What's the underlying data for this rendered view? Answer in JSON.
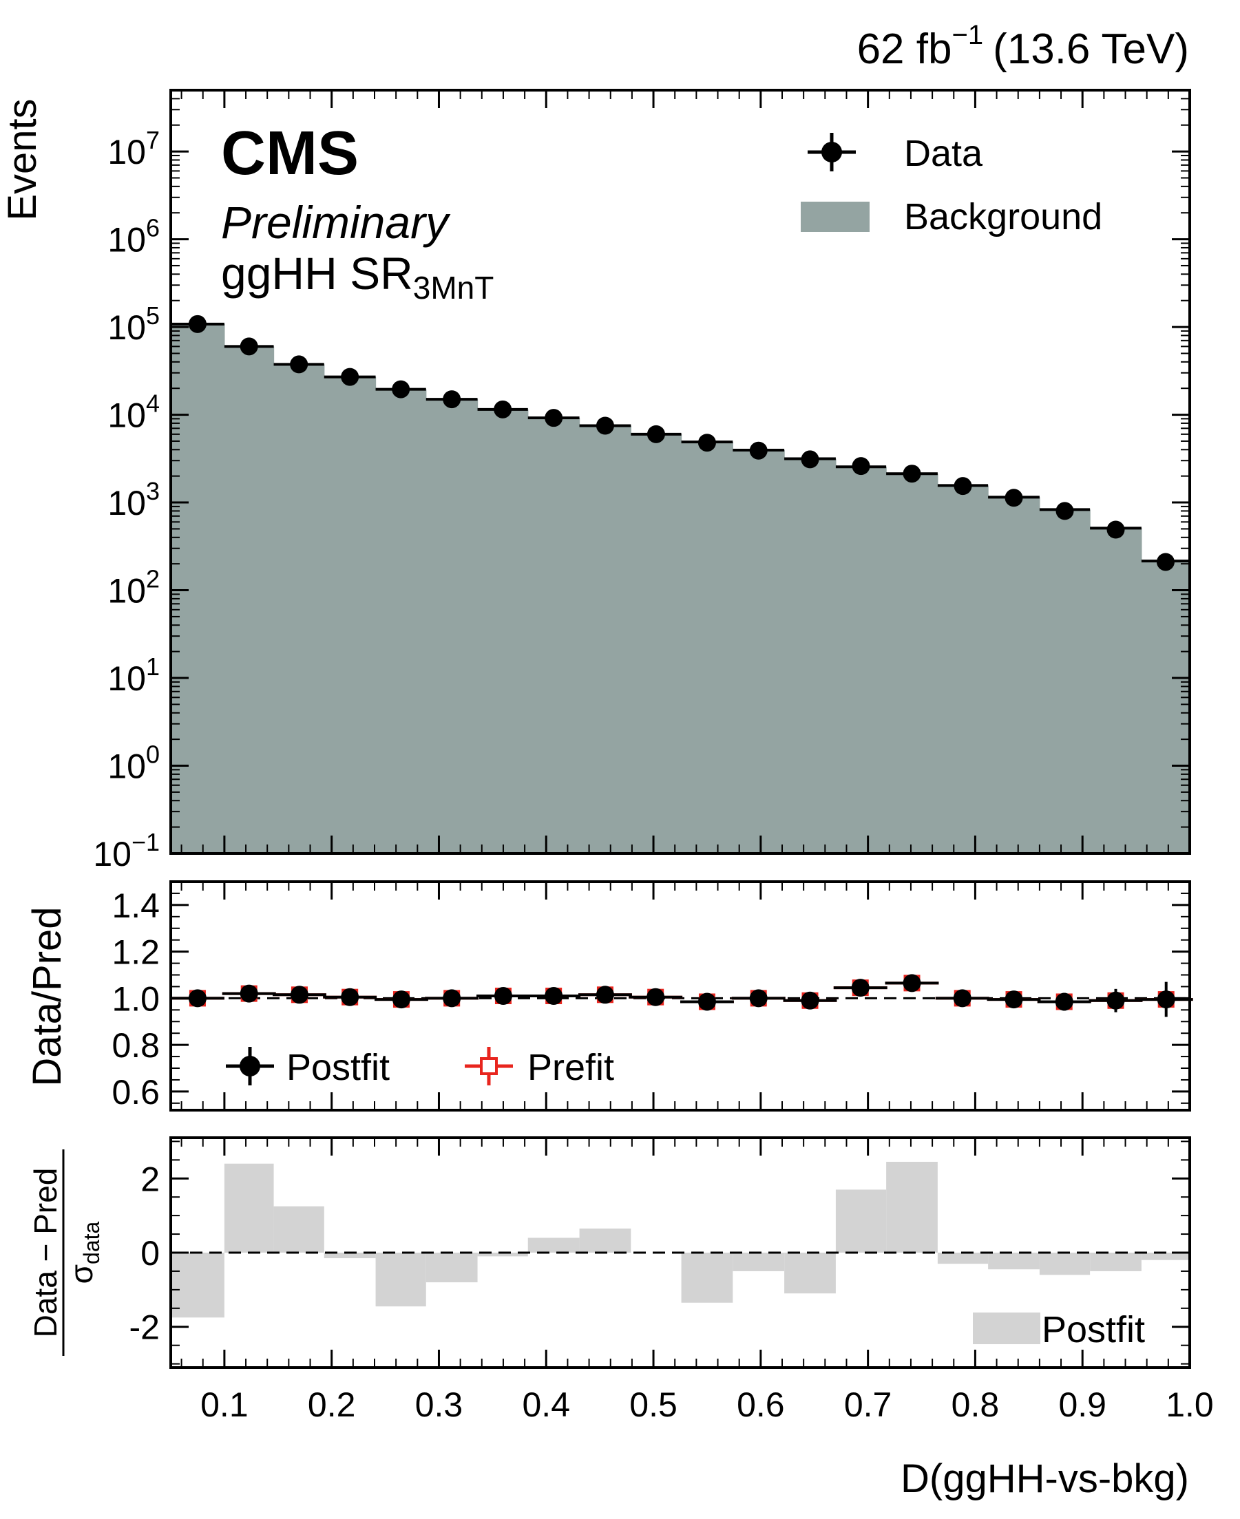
{
  "header": {
    "lumi_prefix": "62 fb",
    "lumi_exp": "−1",
    "energy": "(13.6 TeV)"
  },
  "labels": {
    "cms": "CMS",
    "preliminary": "Preliminary",
    "region_main": "ggHH SR",
    "region_sub": "3MnT"
  },
  "chart_data": [
    {
      "type": "bar",
      "panel": "main",
      "yscale": "log",
      "ylabel": "Events",
      "xlabel": "D(ggHH-vs-bkg)",
      "xlim": [
        0.05,
        1.0
      ],
      "ylim": [
        0.1,
        50000000
      ],
      "y_ticks": [
        {
          "value": 0.1,
          "base": "10",
          "exp": "−1"
        },
        {
          "value": 1,
          "base": "10",
          "exp": "0"
        },
        {
          "value": 10,
          "base": "10",
          "exp": "1"
        },
        {
          "value": 100,
          "base": "10",
          "exp": "2"
        },
        {
          "value": 1000,
          "base": "10",
          "exp": "3"
        },
        {
          "value": 10000,
          "base": "10",
          "exp": "4"
        },
        {
          "value": 100000,
          "base": "10",
          "exp": "5"
        },
        {
          "value": 1000000,
          "base": "10",
          "exp": "6"
        },
        {
          "value": 10000000,
          "base": "10",
          "exp": "7"
        }
      ],
      "bin_edges": [
        0.05,
        0.1,
        0.146,
        0.193,
        0.241,
        0.288,
        0.336,
        0.383,
        0.431,
        0.479,
        0.526,
        0.574,
        0.622,
        0.67,
        0.717,
        0.765,
        0.812,
        0.86,
        0.907,
        0.955,
        1.0
      ],
      "series": [
        {
          "name": "Background",
          "kind": "stacked-histogram",
          "color": "#94a4a2",
          "values": [
            108000,
            60000,
            37500,
            27000,
            19500,
            15000,
            11500,
            9200,
            7500,
            6000,
            4900,
            3950,
            3150,
            2550,
            2130,
            1560,
            1150,
            830,
            510,
            215
          ]
        },
        {
          "name": "Data",
          "kind": "points-with-errors",
          "color": "#000000",
          "values": [
            108000,
            60000,
            37500,
            27000,
            19500,
            15000,
            11500,
            9200,
            7500,
            6000,
            4800,
            3900,
            3100,
            2600,
            2130,
            1540,
            1130,
            800,
            490,
            210
          ]
        }
      ],
      "legend": {
        "placement": "top-right",
        "entries": [
          "Data",
          "Background"
        ]
      }
    },
    {
      "type": "scatter",
      "panel": "ratio",
      "ylabel": "Data/Pred",
      "ylim": [
        0.52,
        1.5
      ],
      "y_ticks": [
        "0.6",
        "0.8",
        "1.0",
        "1.2",
        "1.4"
      ],
      "reference_line": 1.0,
      "series": [
        {
          "name": "Postfit",
          "color": "#000000",
          "x": [
            0.075,
            0.123,
            0.17,
            0.217,
            0.265,
            0.312,
            0.36,
            0.407,
            0.455,
            0.502,
            0.55,
            0.598,
            0.646,
            0.693,
            0.741,
            0.788,
            0.836,
            0.883,
            0.931,
            0.978
          ],
          "values": [
            1.0,
            1.02,
            1.015,
            1.005,
            0.995,
            1.0,
            1.01,
            1.01,
            1.015,
            1.005,
            0.985,
            1.0,
            0.99,
            1.045,
            1.065,
            1.0,
            0.995,
            0.985,
            0.99,
            0.995
          ],
          "errors": [
            0.01,
            0.01,
            0.01,
            0.01,
            0.01,
            0.012,
            0.012,
            0.014,
            0.015,
            0.016,
            0.018,
            0.02,
            0.022,
            0.024,
            0.026,
            0.028,
            0.032,
            0.038,
            0.05,
            0.075
          ]
        },
        {
          "name": "Prefit",
          "color": "#e8251e",
          "x": [
            0.075,
            0.123,
            0.17,
            0.217,
            0.265,
            0.312,
            0.36,
            0.407,
            0.455,
            0.502,
            0.55,
            0.598,
            0.646,
            0.693,
            0.741,
            0.788,
            0.836,
            0.883,
            0.931,
            0.978
          ],
          "values": [
            1.0,
            1.02,
            1.015,
            1.005,
            0.995,
            1.0,
            1.01,
            1.01,
            1.015,
            1.005,
            0.985,
            1.0,
            0.99,
            1.045,
            1.065,
            1.0,
            0.995,
            0.985,
            0.99,
            0.995
          ],
          "errors": [
            0.01,
            0.01,
            0.01,
            0.01,
            0.01,
            0.012,
            0.012,
            0.014,
            0.015,
            0.016,
            0.018,
            0.02,
            0.022,
            0.024,
            0.026,
            0.028,
            0.032,
            0.038,
            0.05,
            0.075
          ]
        }
      ],
      "legend": {
        "placement": "bottom-left",
        "entries": [
          "Postfit",
          "Prefit"
        ]
      }
    },
    {
      "type": "bar",
      "panel": "pull",
      "ylabel_numerator": "Data − Pred",
      "ylabel_denominator_symbol": "σ",
      "ylabel_denominator_sub": "data",
      "ylim": [
        -3.1,
        3.1
      ],
      "y_ticks": [
        "-2",
        "0",
        "2"
      ],
      "x_ticks": [
        "0.1",
        "0.2",
        "0.3",
        "0.4",
        "0.5",
        "0.6",
        "0.7",
        "0.8",
        "0.9",
        "1.0"
      ],
      "x_tick_values": [
        0.1,
        0.2,
        0.3,
        0.4,
        0.5,
        0.6,
        0.7,
        0.8,
        0.9,
        1.0
      ],
      "reference_line": 0,
      "series": [
        {
          "name": "Postfit",
          "color": "#d3d3d3",
          "values": [
            -1.75,
            2.4,
            1.25,
            -0.15,
            -1.45,
            -0.8,
            -0.1,
            0.4,
            0.65,
            0.0,
            -1.35,
            -0.5,
            -1.1,
            1.7,
            2.45,
            -0.3,
            -0.45,
            -0.6,
            -0.5,
            -0.2
          ]
        }
      ],
      "legend": {
        "placement": "bottom-right",
        "entries": [
          "Postfit"
        ]
      }
    }
  ]
}
